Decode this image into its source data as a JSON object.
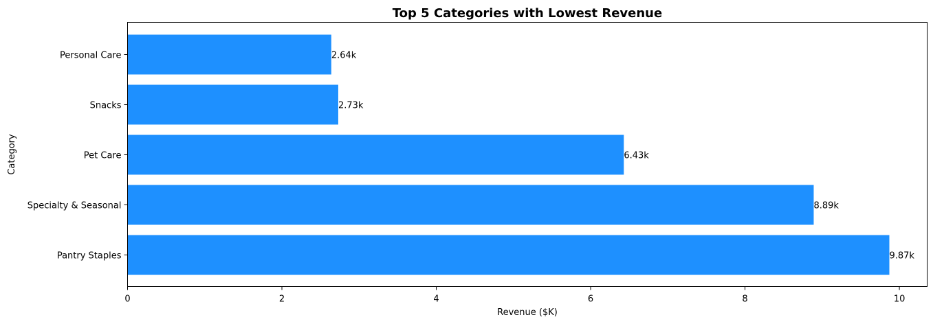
{
  "colors": {
    "bar": "#1e90ff",
    "axis": "#000000",
    "background": "#ffffff"
  },
  "chart_data": {
    "type": "bar",
    "orientation": "horizontal",
    "title": "Top 5 Categories with Lowest Revenue",
    "xlabel": "Revenue ($K)",
    "ylabel": "Category",
    "categories": [
      "Personal Care",
      "Snacks",
      "Pet Care",
      "Specialty & Seasonal",
      "Pantry Staples"
    ],
    "values": [
      2.64,
      2.73,
      6.43,
      8.89,
      9.87
    ],
    "data_labels": [
      "2.64k",
      "2.73k",
      "6.43k",
      "8.89k",
      "9.87k"
    ],
    "xlim": [
      0,
      10.36
    ],
    "xticks": [
      0,
      2,
      4,
      6,
      8,
      10
    ],
    "xtick_labels": [
      "0",
      "2",
      "4",
      "6",
      "8",
      "10"
    ],
    "grid": false,
    "legend": "none"
  }
}
